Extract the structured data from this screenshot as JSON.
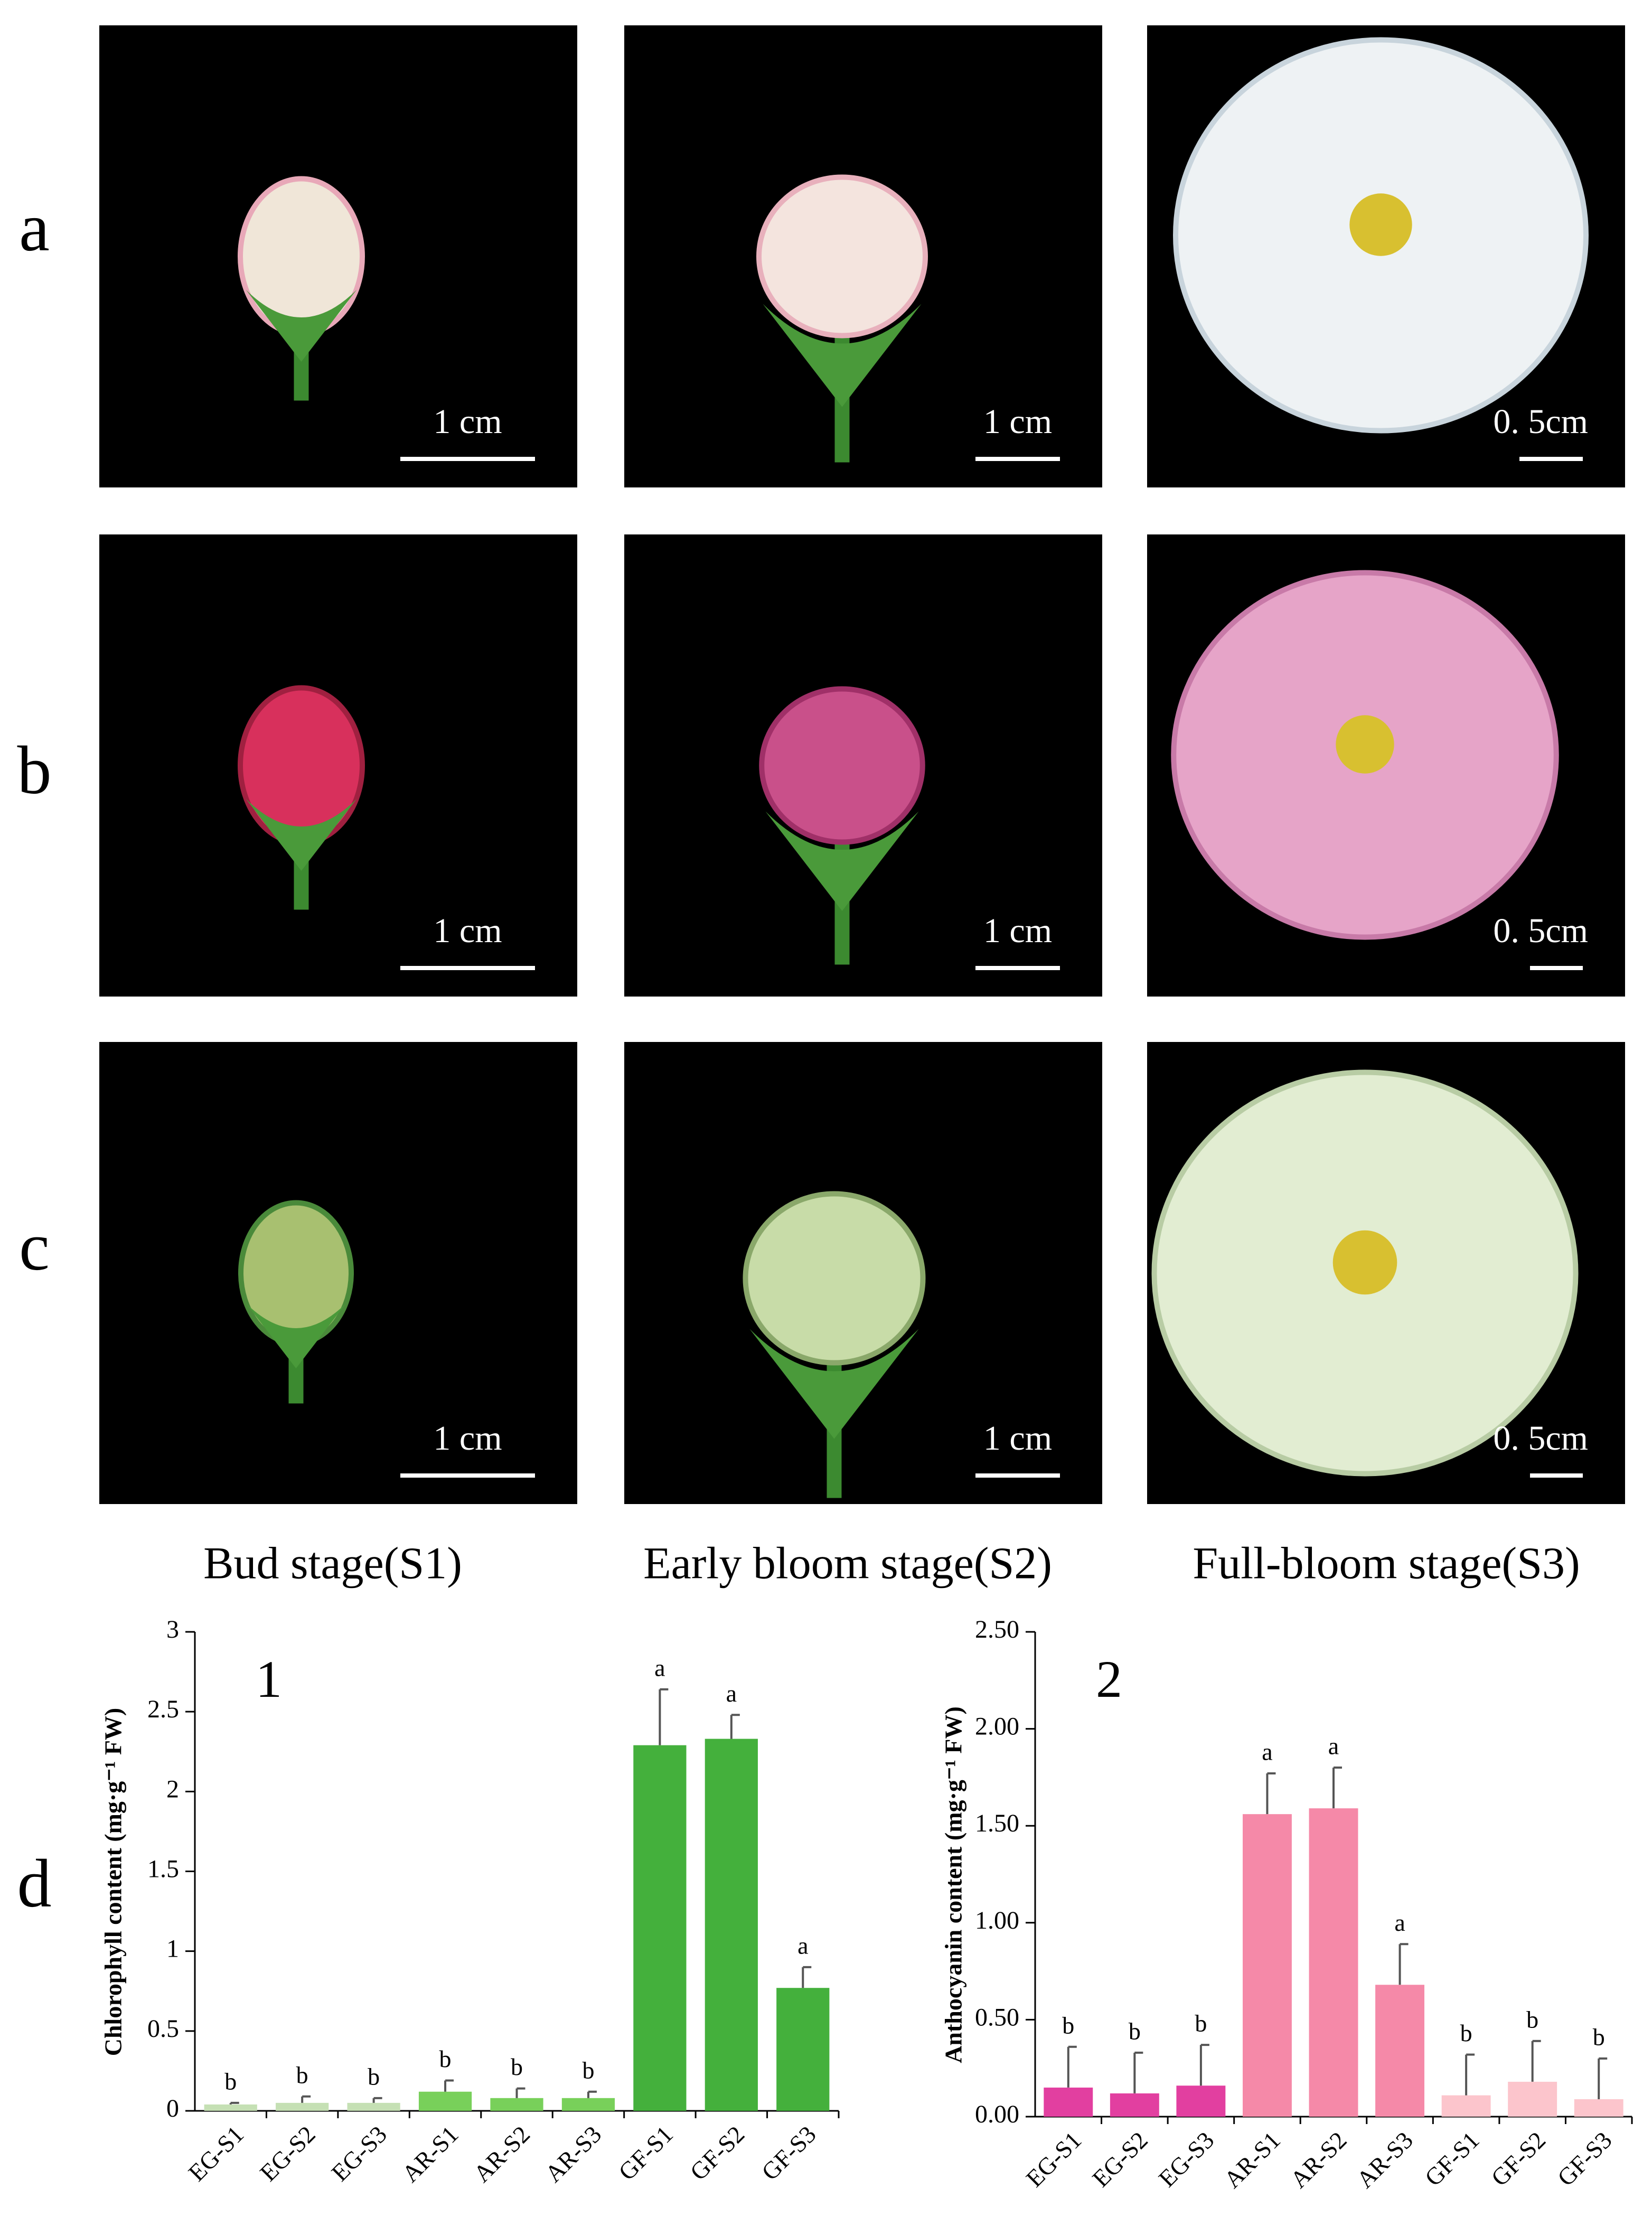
{
  "row_labels": [
    "a",
    "b",
    "c"
  ],
  "scale_labels": [
    [
      "1 cm",
      "1 cm",
      "0. 5cm"
    ],
    [
      "1 cm",
      "1 cm",
      "0. 5cm"
    ],
    [
      "1 cm",
      "1 cm",
      "0. 5cm"
    ]
  ],
  "stage_labels": [
    "Bud stage(S1)",
    "Early bloom stage(S2)",
    "Full-bloom stage(S3)"
  ],
  "chart_panel_label": "d",
  "chart_data": [
    {
      "type": "bar",
      "title": "1",
      "y_label": "Chlorophyll content (mg·g⁻¹ FW)",
      "categories": [
        "EG-S1",
        "EG-S2",
        "EG-S3",
        "AR-S1",
        "AR-S2",
        "AR-S3",
        "GF-S1",
        "GF-S2",
        "GF-S3"
      ],
      "values": [
        0.04,
        0.05,
        0.05,
        0.12,
        0.08,
        0.08,
        2.29,
        2.33,
        0.77
      ],
      "errors": [
        0.01,
        0.04,
        0.03,
        0.07,
        0.06,
        0.04,
        0.35,
        0.15,
        0.13
      ],
      "value_labels": [
        "b",
        "b",
        "b",
        "b",
        "b",
        "b",
        "a",
        "a",
        "a"
      ],
      "colors": [
        "#c5e0b4",
        "#c5e0b4",
        "#c5e0b4",
        "#78d05a",
        "#78d05a",
        "#78d05a",
        "#44b03c",
        "#44b03c",
        "#44b03c"
      ],
      "ylim": [
        0,
        3
      ],
      "yticks": [
        0,
        0.5,
        1,
        1.5,
        2,
        2.5,
        3
      ]
    },
    {
      "type": "bar",
      "title": "2",
      "y_label": "Anthocyanin content (mg·g⁻¹ FW)",
      "categories": [
        "EG-S1",
        "EG-S2",
        "EG-S3",
        "AR-S1",
        "AR-S2",
        "AR-S3",
        "GF-S1",
        "GF-S2",
        "GF-S3"
      ],
      "values": [
        0.15,
        0.12,
        0.16,
        1.56,
        1.59,
        0.68,
        0.11,
        0.18,
        0.09
      ],
      "errors": [
        0.21,
        0.21,
        0.21,
        0.21,
        0.21,
        0.21,
        0.21,
        0.21,
        0.21
      ],
      "value_labels": [
        "b",
        "b",
        "b",
        "a",
        "a",
        "a",
        "b",
        "b",
        "b"
      ],
      "colors": [
        "#e23fa0",
        "#e23fa0",
        "#e23fa0",
        "#f589a8",
        "#f589a8",
        "#f589a8",
        "#fcc5cc",
        "#fcc5cc",
        "#fcc5cc"
      ],
      "ylim": [
        0,
        2.5
      ],
      "yticks": [
        {
          "value": 0,
          "label": "0.00"
        },
        {
          "value": 0.5,
          "label": "0.50"
        },
        {
          "value": 1,
          "label": "1.00"
        },
        {
          "value": 1.5,
          "label": "1.50"
        },
        {
          "value": 2,
          "label": "2.00"
        },
        {
          "value": 2.5,
          "label": "2.50"
        }
      ]
    }
  ]
}
